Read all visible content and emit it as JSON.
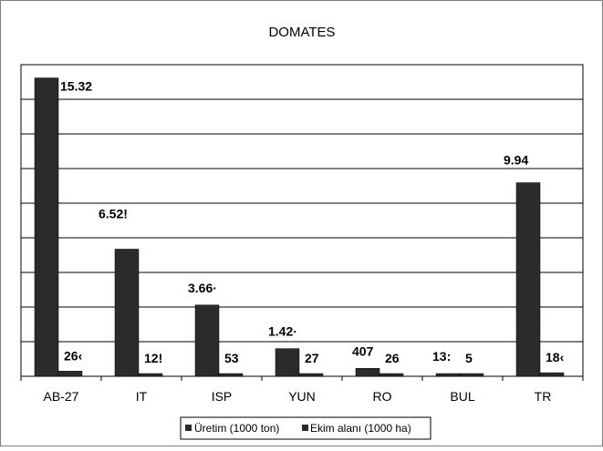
{
  "chart_data": {
    "type": "bar",
    "title": "DOMATES",
    "categories": [
      "AB-27",
      "IT",
      "ISP",
      "YUN",
      "RO",
      "BUL",
      "TR"
    ],
    "series": [
      {
        "name": "Üretim (1000 ton)",
        "values": [
          15320,
          6528,
          3660,
          1420,
          407,
          133,
          9940
        ],
        "labels": [
          "15.32",
          "6.52!",
          "3.66·",
          "1.42·",
          "407",
          "13:",
          "9.94"
        ]
      },
      {
        "name": "Ekim alanı (1000 ha)",
        "values": [
          264,
          125,
          53,
          27,
          26,
          5,
          184
        ],
        "labels": [
          "26‹",
          "12!",
          "53",
          "27",
          "26",
          "5",
          "18‹"
        ]
      }
    ],
    "ylim": [
      0,
      16000
    ],
    "grid": true,
    "legend": "bottom",
    "colors": {
      "series": [
        "#2b2b2b",
        "#2b2b2b"
      ],
      "grid": "#000000",
      "frame": "#808080"
    }
  }
}
